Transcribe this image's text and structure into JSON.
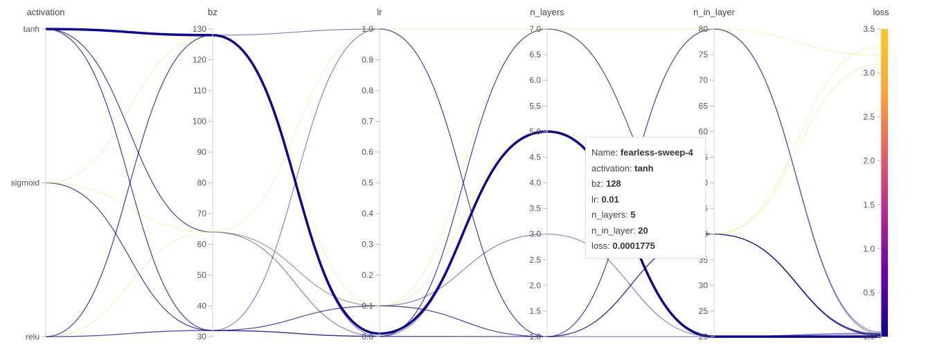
{
  "chart_data": {
    "type": "parallel-coordinates",
    "axes": [
      {
        "key": "activation",
        "label": "activation",
        "categorical": true,
        "categories": [
          "relu",
          "sigmoid",
          "tanh"
        ]
      },
      {
        "key": "bz",
        "label": "bz",
        "range": [
          30,
          130
        ],
        "ticks": [
          "30",
          "40",
          "50",
          "60",
          "70",
          "80",
          "90",
          "100",
          "110",
          "120",
          "130"
        ]
      },
      {
        "key": "lr",
        "label": "lr",
        "range": [
          0,
          1
        ],
        "ticks": [
          "0.0",
          "0.1",
          "0.2",
          "0.3",
          "0.4",
          "0.5",
          "0.6",
          "0.7",
          "0.8",
          "0.9",
          "1.0"
        ]
      },
      {
        "key": "n_layers",
        "label": "n_layers",
        "range": [
          1,
          7
        ],
        "ticks": [
          "1.0",
          "1.5",
          "2.0",
          "2.5",
          "3.0",
          "3.5",
          "4.0",
          "4.5",
          "5.0",
          "5.5",
          "6.0",
          "6.5",
          "7.0"
        ]
      },
      {
        "key": "n_in_layer",
        "label": "n_in_layer",
        "range": [
          20,
          80
        ],
        "ticks": [
          "20",
          "25",
          "30",
          "35",
          "40",
          "45",
          "50",
          "55",
          "60",
          "65",
          "70",
          "75",
          "80"
        ]
      },
      {
        "key": "loss",
        "label": "loss",
        "range": [
          0,
          3.5
        ],
        "ticks": [
          "0.0",
          "0.5",
          "1.0",
          "1.5",
          "2.0",
          "2.5",
          "3.0",
          "3.5"
        ],
        "colorscale": true
      }
    ],
    "runs": [
      {
        "activation": "tanh",
        "bz": 128,
        "lr": 0.01,
        "n_layers": 5,
        "n_in_layer": 20,
        "loss": 0.0001775,
        "highlight": true
      },
      {
        "activation": "tanh",
        "bz": 64,
        "lr": 0.1,
        "n_layers": 1,
        "n_in_layer": 80,
        "loss": 0.05
      },
      {
        "activation": "tanh",
        "bz": 32,
        "lr": 0.001,
        "n_layers": 7,
        "n_in_layer": 40,
        "loss": 0.02
      },
      {
        "activation": "tanh",
        "bz": 64,
        "lr": 0.001,
        "n_layers": 1,
        "n_in_layer": 40,
        "loss": 0.03
      },
      {
        "activation": "sigmoid",
        "bz": 32,
        "lr": 0.001,
        "n_layers": 5,
        "n_in_layer": 20,
        "loss": 0.01
      },
      {
        "activation": "sigmoid",
        "bz": 32,
        "lr": 1.0,
        "n_layers": 1,
        "n_in_layer": 20,
        "loss": 0.04
      },
      {
        "activation": "sigmoid",
        "bz": 64,
        "lr": 1.0,
        "n_layers": 7,
        "n_in_layer": 40,
        "loss": 3.3
      },
      {
        "activation": "relu",
        "bz": 128,
        "lr": 0.001,
        "n_layers": 7,
        "n_in_layer": 40,
        "loss": 0.02
      },
      {
        "activation": "relu",
        "bz": 32,
        "lr": 0.1,
        "n_layers": 3,
        "n_in_layer": 20,
        "loss": 0.03
      },
      {
        "activation": "relu",
        "bz": 64,
        "lr": 0.1,
        "n_layers": 7,
        "n_in_layer": 80,
        "loss": 3.2
      },
      {
        "activation": "relu",
        "bz": 128,
        "lr": 1.0,
        "n_layers": 1,
        "n_in_layer": 40,
        "loss": 0.01
      },
      {
        "activation": "sigmoid",
        "bz": 128,
        "lr": 0.1,
        "n_layers": 5,
        "n_in_layer": 40,
        "loss": 3.1
      },
      {
        "activation": "tanh",
        "bz": 32,
        "lr": 0.1,
        "n_layers": 1,
        "n_in_layer": 40,
        "loss": 0.02
      },
      {
        "activation": "relu",
        "bz": 32,
        "lr": 0.001,
        "n_layers": 1,
        "n_in_layer": 80,
        "loss": 0.03
      }
    ],
    "colorscale": [
      "#0d0887",
      "#6a00a8",
      "#b12a90",
      "#e16462",
      "#fca636",
      "#f0f921"
    ],
    "tooltip": {
      "name_label": "Name:",
      "name": "fearless-sweep-4",
      "activation_label": "activation:",
      "activation": "tanh",
      "bz_label": "bz:",
      "bz": "128",
      "lr_label": "lr:",
      "lr": "0.01",
      "n_layers_label": "n_layers:",
      "n_layers": "5",
      "n_in_layer_label": "n_in_layer:",
      "n_in_layer": "20",
      "loss_label": "loss:",
      "loss": "0.0001775"
    }
  }
}
